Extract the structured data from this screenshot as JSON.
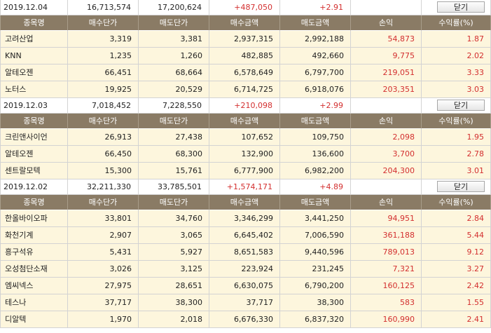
{
  "close_label": "닫기",
  "headers": [
    "종목명",
    "매수단가",
    "매도단가",
    "매수금액",
    "매도금액",
    "손익",
    "수익률(%)"
  ],
  "days": [
    {
      "date": "2019.12.04",
      "buy_total": "16,713,574",
      "sell_total": "17,200,624",
      "profit_total": "+487,050",
      "rate_total": "+2.91",
      "rows": [
        {
          "name": "고려산업",
          "buy_price": "3,319",
          "sell_price": "3,381",
          "buy_amount": "2,937,315",
          "sell_amount": "2,992,188",
          "profit": "54,873",
          "rate": "1.87"
        },
        {
          "name": "KNN",
          "buy_price": "1,235",
          "sell_price": "1,260",
          "buy_amount": "482,885",
          "sell_amount": "492,660",
          "profit": "9,775",
          "rate": "2.02"
        },
        {
          "name": "알테오젠",
          "buy_price": "66,451",
          "sell_price": "68,664",
          "buy_amount": "6,578,649",
          "sell_amount": "6,797,700",
          "profit": "219,051",
          "rate": "3.33"
        },
        {
          "name": "노터스",
          "buy_price": "19,925",
          "sell_price": "20,529",
          "buy_amount": "6,714,725",
          "sell_amount": "6,918,076",
          "profit": "203,351",
          "rate": "3.03"
        }
      ]
    },
    {
      "date": "2019.12.03",
      "buy_total": "7,018,452",
      "sell_total": "7,228,550",
      "profit_total": "+210,098",
      "rate_total": "+2.99",
      "rows": [
        {
          "name": "크린앤사이언",
          "buy_price": "26,913",
          "sell_price": "27,438",
          "buy_amount": "107,652",
          "sell_amount": "109,750",
          "profit": "2,098",
          "rate": "1.95"
        },
        {
          "name": "알테오젠",
          "buy_price": "66,450",
          "sell_price": "68,300",
          "buy_amount": "132,900",
          "sell_amount": "136,600",
          "profit": "3,700",
          "rate": "2.78"
        },
        {
          "name": "센트랄모텍",
          "buy_price": "15,300",
          "sell_price": "15,761",
          "buy_amount": "6,777,900",
          "sell_amount": "6,982,200",
          "profit": "204,300",
          "rate": "3.01"
        }
      ]
    },
    {
      "date": "2019.12.02",
      "buy_total": "32,211,330",
      "sell_total": "33,785,501",
      "profit_total": "+1,574,171",
      "rate_total": "+4.89",
      "rows": [
        {
          "name": "한올바이오파",
          "buy_price": "33,801",
          "sell_price": "34,760",
          "buy_amount": "3,346,299",
          "sell_amount": "3,441,250",
          "profit": "94,951",
          "rate": "2.84"
        },
        {
          "name": "화천기계",
          "buy_price": "2,907",
          "sell_price": "3,065",
          "buy_amount": "6,645,402",
          "sell_amount": "7,006,590",
          "profit": "361,188",
          "rate": "5.44"
        },
        {
          "name": "흥구석유",
          "buy_price": "5,431",
          "sell_price": "5,927",
          "buy_amount": "8,651,583",
          "sell_amount": "9,440,596",
          "profit": "789,013",
          "rate": "9.12"
        },
        {
          "name": "오성첨단소재",
          "buy_price": "3,026",
          "sell_price": "3,125",
          "buy_amount": "223,924",
          "sell_amount": "231,245",
          "profit": "7,321",
          "rate": "3.27"
        },
        {
          "name": "엠씨넥스",
          "buy_price": "27,975",
          "sell_price": "28,651",
          "buy_amount": "6,630,075",
          "sell_amount": "6,790,200",
          "profit": "160,125",
          "rate": "2.42"
        },
        {
          "name": "테스나",
          "buy_price": "37,717",
          "sell_price": "38,300",
          "buy_amount": "37,717",
          "sell_amount": "38,300",
          "profit": "583",
          "rate": "1.55"
        },
        {
          "name": "디알텍",
          "buy_price": "1,970",
          "sell_price": "2,018",
          "buy_amount": "6,676,330",
          "sell_amount": "6,837,320",
          "profit": "160,990",
          "rate": "2.41"
        }
      ]
    }
  ],
  "colors": {
    "header_bg": "#8a7b65",
    "row_bg": "#fdf6dd",
    "profit_red": "#d32f2f"
  }
}
